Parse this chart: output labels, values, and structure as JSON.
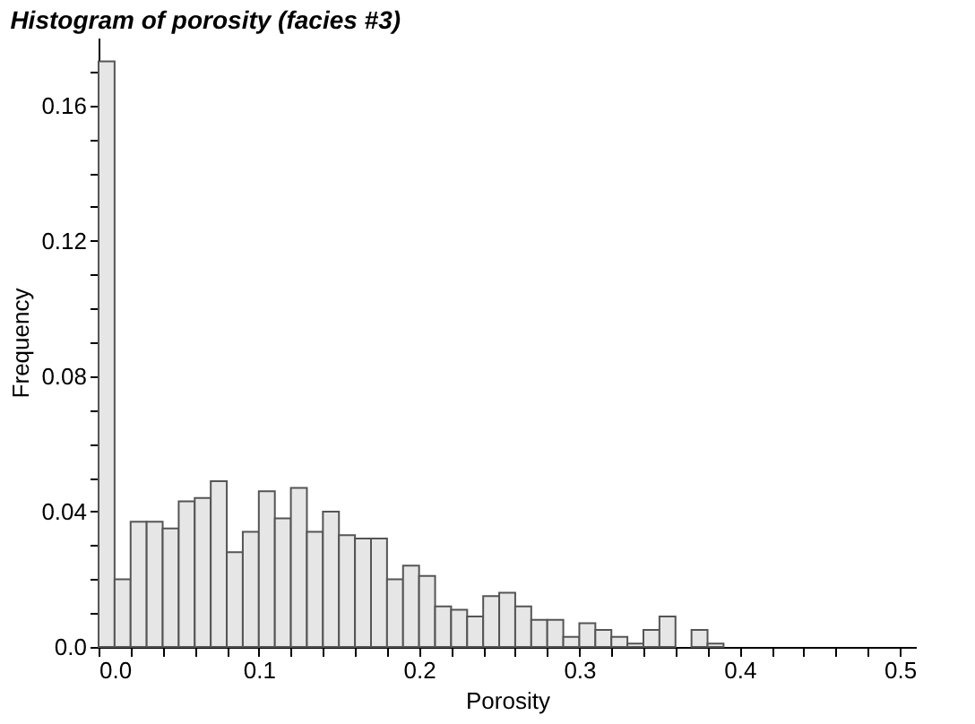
{
  "chart_data": {
    "type": "histogram",
    "title": "Histogram of porosity (facies #3)",
    "xlabel": "Porosity",
    "ylabel": "Frequency",
    "bins": [
      0.0,
      0.01,
      0.02,
      0.03,
      0.04,
      0.05,
      0.06,
      0.07,
      0.08,
      0.09,
      0.1,
      0.11,
      0.12,
      0.13,
      0.14,
      0.15,
      0.16,
      0.17,
      0.18,
      0.19,
      0.2,
      0.21,
      0.22,
      0.23,
      0.24,
      0.25,
      0.26,
      0.27,
      0.28,
      0.29,
      0.3,
      0.31,
      0.32,
      0.33,
      0.34,
      0.35,
      0.36,
      0.37,
      0.38,
      0.39
    ],
    "values": [
      0.173,
      0.02,
      0.037,
      0.037,
      0.035,
      0.043,
      0.044,
      0.049,
      0.028,
      0.034,
      0.046,
      0.038,
      0.047,
      0.034,
      0.04,
      0.033,
      0.032,
      0.032,
      0.02,
      0.024,
      0.021,
      0.012,
      0.011,
      0.009,
      0.015,
      0.016,
      0.012,
      0.008,
      0.008,
      0.003,
      0.007,
      0.005,
      0.003,
      0.001,
      0.005,
      0.009,
      null,
      0.005,
      0.001
    ],
    "color": "#e6e6e6",
    "xlim": [
      0,
      0.51
    ],
    "xticks": [
      {
        "value": 0,
        "label": "0.0"
      },
      {
        "value": 0.02,
        "label": null
      },
      {
        "value": 0.04,
        "label": null
      },
      {
        "value": 0.06,
        "label": null
      },
      {
        "value": 0.08,
        "label": null
      },
      0.1,
      {
        "value": 0.12,
        "label": null
      },
      {
        "value": 0.14,
        "label": null
      },
      {
        "value": 0.16,
        "label": null
      },
      {
        "value": 0.18,
        "label": null
      },
      0.2,
      {
        "value": 0.22,
        "label": null
      },
      {
        "value": 0.24,
        "label": null
      },
      {
        "value": 0.26,
        "label": null
      },
      {
        "value": 0.28,
        "label": null
      },
      0.3,
      {
        "value": 0.32,
        "label": null
      },
      {
        "value": 0.34,
        "label": null
      },
      {
        "value": 0.36,
        "label": null
      },
      {
        "value": 0.38,
        "label": null
      },
      0.4,
      {
        "value": 0.42,
        "label": null
      },
      {
        "value": 0.44,
        "label": null
      },
      {
        "value": 0.46,
        "label": null
      },
      {
        "value": 0.48,
        "label": null
      },
      0.5
    ],
    "ylim": [
      0,
      0.18
    ],
    "yticks": [
      {
        "value": 0,
        "label": "0.0"
      },
      {
        "value": 0.01,
        "label": null
      },
      {
        "value": 0.02,
        "label": null
      },
      {
        "value": 0.03,
        "label": null
      },
      0.04,
      {
        "value": 0.05,
        "label": null
      },
      {
        "value": 0.06,
        "label": null
      },
      {
        "value": 0.07,
        "label": null
      },
      0.08,
      {
        "value": 0.09,
        "label": null
      },
      {
        "value": 0.1,
        "label": null
      },
      {
        "value": 0.11,
        "label": null
      },
      0.12,
      {
        "value": 0.13,
        "label": null
      },
      {
        "value": 0.14,
        "label": null
      },
      {
        "value": 0.15,
        "label": null
      },
      0.16,
      {
        "value": 0.17,
        "label": null
      }
    ],
    "grid": false
  }
}
